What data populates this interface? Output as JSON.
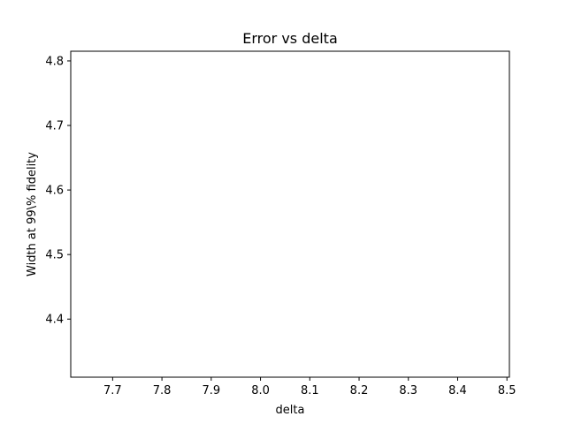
{
  "chart_data": {
    "type": "line",
    "title": "Error vs delta",
    "xlabel": "delta",
    "ylabel": "Width at 99\\% fidelity",
    "xlim": [
      7.615,
      8.505
    ],
    "ylim": [
      4.31,
      4.815
    ],
    "xticks": [
      7.7,
      7.8,
      7.9,
      8.0,
      8.1,
      8.2,
      8.3,
      8.4,
      8.5
    ],
    "xtick_labels": [
      "7.7",
      "7.8",
      "7.9",
      "8.0",
      "8.1",
      "8.2",
      "8.3",
      "8.4",
      "8.5"
    ],
    "yticks": [
      4.4,
      4.5,
      4.6,
      4.7,
      4.8
    ],
    "ytick_labels": [
      "4.4",
      "4.5",
      "4.6",
      "4.7",
      "4.8"
    ],
    "grid": false,
    "series": []
  }
}
